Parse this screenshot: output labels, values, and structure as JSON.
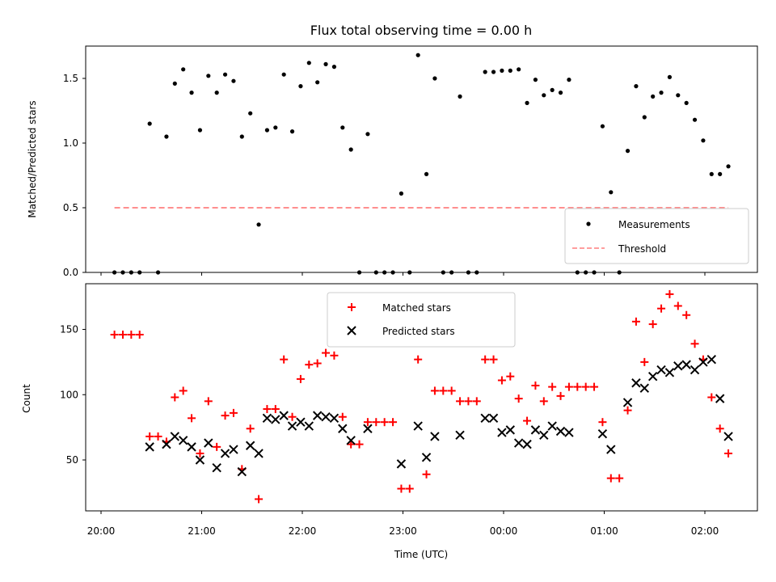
{
  "chart_data": [
    {
      "type": "scatter",
      "title": "Flux total observing time = 0.00 h",
      "xlabel": "",
      "ylabel": "Matched/Predicted stars",
      "ylim": [
        0,
        1.75
      ],
      "yticks": [
        "0.0",
        "0.5",
        "1.0",
        "1.5"
      ],
      "legend_position": "bottom-right",
      "series": [
        {
          "name": "Measurements",
          "color": "#000000",
          "marker": "dot",
          "points": [
            [
              "20:08",
              0.0
            ],
            [
              "20:13",
              0.0
            ],
            [
              "20:18",
              0.0
            ],
            [
              "20:23",
              0.0
            ],
            [
              "20:29",
              1.15
            ],
            [
              "20:34",
              0.0
            ],
            [
              "20:39",
              1.05
            ],
            [
              "20:44",
              1.46
            ],
            [
              "20:49",
              1.57
            ],
            [
              "20:54",
              1.39
            ],
            [
              "20:59",
              1.1
            ],
            [
              "21:04",
              1.52
            ],
            [
              "21:09",
              1.39
            ],
            [
              "21:14",
              1.53
            ],
            [
              "21:19",
              1.48
            ],
            [
              "21:24",
              1.05
            ],
            [
              "21:29",
              1.23
            ],
            [
              "21:34",
              0.37
            ],
            [
              "21:39",
              1.1
            ],
            [
              "21:44",
              1.12
            ],
            [
              "21:49",
              1.53
            ],
            [
              "21:54",
              1.09
            ],
            [
              "21:59",
              1.44
            ],
            [
              "22:04",
              1.62
            ],
            [
              "22:09",
              1.47
            ],
            [
              "22:14",
              1.61
            ],
            [
              "22:19",
              1.59
            ],
            [
              "22:24",
              1.12
            ],
            [
              "22:29",
              0.95
            ],
            [
              "22:34",
              0.0
            ],
            [
              "22:39",
              1.07
            ],
            [
              "22:44",
              0.0
            ],
            [
              "22:49",
              0.0
            ],
            [
              "22:54",
              0.0
            ],
            [
              "22:59",
              0.61
            ],
            [
              "23:04",
              0.0
            ],
            [
              "23:09",
              1.68
            ],
            [
              "23:14",
              0.76
            ],
            [
              "23:19",
              1.5
            ],
            [
              "23:24",
              0.0
            ],
            [
              "23:29",
              0.0
            ],
            [
              "23:34",
              1.36
            ],
            [
              "23:39",
              0.0
            ],
            [
              "23:44",
              0.0
            ],
            [
              "23:49",
              1.55
            ],
            [
              "23:54",
              1.55
            ],
            [
              "23:59",
              1.56
            ],
            [
              "00:04",
              1.56
            ],
            [
              "00:09",
              1.57
            ],
            [
              "00:14",
              1.31
            ],
            [
              "00:19",
              1.49
            ],
            [
              "00:24",
              1.37
            ],
            [
              "00:29",
              1.41
            ],
            [
              "00:34",
              1.39
            ],
            [
              "00:39",
              1.49
            ],
            [
              "00:44",
              0.0
            ],
            [
              "00:49",
              0.0
            ],
            [
              "00:54",
              0.0
            ],
            [
              "00:59",
              1.13
            ],
            [
              "01:04",
              0.62
            ],
            [
              "01:09",
              0.0
            ],
            [
              "01:14",
              0.94
            ],
            [
              "01:19",
              1.44
            ],
            [
              "01:24",
              1.2
            ],
            [
              "01:29",
              1.36
            ],
            [
              "01:34",
              1.39
            ],
            [
              "01:39",
              1.51
            ],
            [
              "01:44",
              1.37
            ],
            [
              "01:49",
              1.31
            ],
            [
              "01:54",
              1.18
            ],
            [
              "01:59",
              1.02
            ],
            [
              "02:04",
              0.76
            ],
            [
              "02:09",
              0.76
            ],
            [
              "02:14",
              0.82
            ]
          ]
        },
        {
          "name": "Threshold",
          "color": "#ff7f7f",
          "marker": "dashed-line",
          "points": [
            [
              "20:08",
              0.5
            ],
            [
              "02:14",
              0.5
            ]
          ]
        }
      ]
    },
    {
      "type": "scatter",
      "title": "",
      "xlabel": "Time (UTC)",
      "ylabel": "Count",
      "ylim": [
        11,
        185
      ],
      "yticks": [
        "50",
        "100",
        "150"
      ],
      "xticks": [
        "20:00",
        "21:00",
        "22:00",
        "23:00",
        "00:00",
        "01:00",
        "02:00"
      ],
      "legend_position": "top-center",
      "series": [
        {
          "name": "Matched stars",
          "color": "#ff0000",
          "marker": "plus",
          "points": [
            [
              "20:08",
              146
            ],
            [
              "20:13",
              146
            ],
            [
              "20:18",
              146
            ],
            [
              "20:23",
              146
            ],
            [
              "20:29",
              68
            ],
            [
              "20:34",
              68
            ],
            [
              "20:39",
              64
            ],
            [
              "20:44",
              98
            ],
            [
              "20:49",
              103
            ],
            [
              "20:54",
              82
            ],
            [
              "20:59",
              55
            ],
            [
              "21:04",
              95
            ],
            [
              "21:09",
              60
            ],
            [
              "21:14",
              84
            ],
            [
              "21:19",
              86
            ],
            [
              "21:24",
              43
            ],
            [
              "21:29",
              74
            ],
            [
              "21:34",
              20
            ],
            [
              "21:39",
              89
            ],
            [
              "21:44",
              89
            ],
            [
              "21:49",
              127
            ],
            [
              "21:54",
              83
            ],
            [
              "21:59",
              112
            ],
            [
              "22:04",
              123
            ],
            [
              "22:09",
              124
            ],
            [
              "22:14",
              132
            ],
            [
              "22:19",
              130
            ],
            [
              "22:24",
              83
            ],
            [
              "22:29",
              62
            ],
            [
              "22:34",
              62
            ],
            [
              "22:39",
              79
            ],
            [
              "22:44",
              79
            ],
            [
              "22:49",
              79
            ],
            [
              "22:54",
              79
            ],
            [
              "22:59",
              28
            ],
            [
              "23:04",
              28
            ],
            [
              "23:09",
              127
            ],
            [
              "23:14",
              39
            ],
            [
              "23:19",
              103
            ],
            [
              "23:24",
              103
            ],
            [
              "23:29",
              103
            ],
            [
              "23:34",
              95
            ],
            [
              "23:39",
              95
            ],
            [
              "23:44",
              95
            ],
            [
              "23:49",
              127
            ],
            [
              "23:54",
              127
            ],
            [
              "23:59",
              111
            ],
            [
              "00:04",
              114
            ],
            [
              "00:09",
              97
            ],
            [
              "00:14",
              80
            ],
            [
              "00:19",
              107
            ],
            [
              "00:24",
              95
            ],
            [
              "00:29",
              106
            ],
            [
              "00:34",
              99
            ],
            [
              "00:39",
              106
            ],
            [
              "00:44",
              106
            ],
            [
              "00:49",
              106
            ],
            [
              "00:54",
              106
            ],
            [
              "00:59",
              79
            ],
            [
              "01:04",
              36
            ],
            [
              "01:09",
              36
            ],
            [
              "01:14",
              88
            ],
            [
              "01:19",
              156
            ],
            [
              "01:24",
              125
            ],
            [
              "01:29",
              154
            ],
            [
              "01:34",
              166
            ],
            [
              "01:39",
              177
            ],
            [
              "01:44",
              168
            ],
            [
              "01:49",
              161
            ],
            [
              "01:54",
              139
            ],
            [
              "01:59",
              127
            ],
            [
              "02:04",
              98
            ],
            [
              "02:09",
              74
            ],
            [
              "02:14",
              55
            ]
          ]
        },
        {
          "name": "Predicted stars",
          "color": "#000000",
          "marker": "x",
          "points": [
            [
              "20:29",
              60
            ],
            [
              "20:39",
              62
            ],
            [
              "20:44",
              68
            ],
            [
              "20:49",
              65
            ],
            [
              "20:54",
              60
            ],
            [
              "20:59",
              50
            ],
            [
              "21:04",
              63
            ],
            [
              "21:09",
              44
            ],
            [
              "21:14",
              55
            ],
            [
              "21:19",
              58
            ],
            [
              "21:24",
              41
            ],
            [
              "21:29",
              61
            ],
            [
              "21:34",
              55
            ],
            [
              "21:39",
              82
            ],
            [
              "21:44",
              81
            ],
            [
              "21:49",
              84
            ],
            [
              "21:54",
              76
            ],
            [
              "21:59",
              79
            ],
            [
              "22:04",
              76
            ],
            [
              "22:09",
              84
            ],
            [
              "22:14",
              83
            ],
            [
              "22:19",
              82
            ],
            [
              "22:24",
              74
            ],
            [
              "22:29",
              65
            ],
            [
              "22:39",
              74
            ],
            [
              "22:59",
              47
            ],
            [
              "23:09",
              76
            ],
            [
              "23:14",
              52
            ],
            [
              "23:19",
              68
            ],
            [
              "23:34",
              69
            ],
            [
              "23:49",
              82
            ],
            [
              "23:54",
              82
            ],
            [
              "23:59",
              71
            ],
            [
              "00:04",
              73
            ],
            [
              "00:09",
              63
            ],
            [
              "00:14",
              62
            ],
            [
              "00:19",
              73
            ],
            [
              "00:24",
              69
            ],
            [
              "00:29",
              76
            ],
            [
              "00:34",
              72
            ],
            [
              "00:39",
              71
            ],
            [
              "00:59",
              70
            ],
            [
              "01:04",
              58
            ],
            [
              "01:14",
              94
            ],
            [
              "01:19",
              109
            ],
            [
              "01:24",
              105
            ],
            [
              "01:29",
              114
            ],
            [
              "01:34",
              119
            ],
            [
              "01:39",
              117
            ],
            [
              "01:44",
              122
            ],
            [
              "01:49",
              123
            ],
            [
              "01:54",
              119
            ],
            [
              "01:59",
              125
            ],
            [
              "02:04",
              127
            ],
            [
              "02:09",
              97
            ],
            [
              "02:14",
              68
            ]
          ]
        }
      ]
    }
  ]
}
